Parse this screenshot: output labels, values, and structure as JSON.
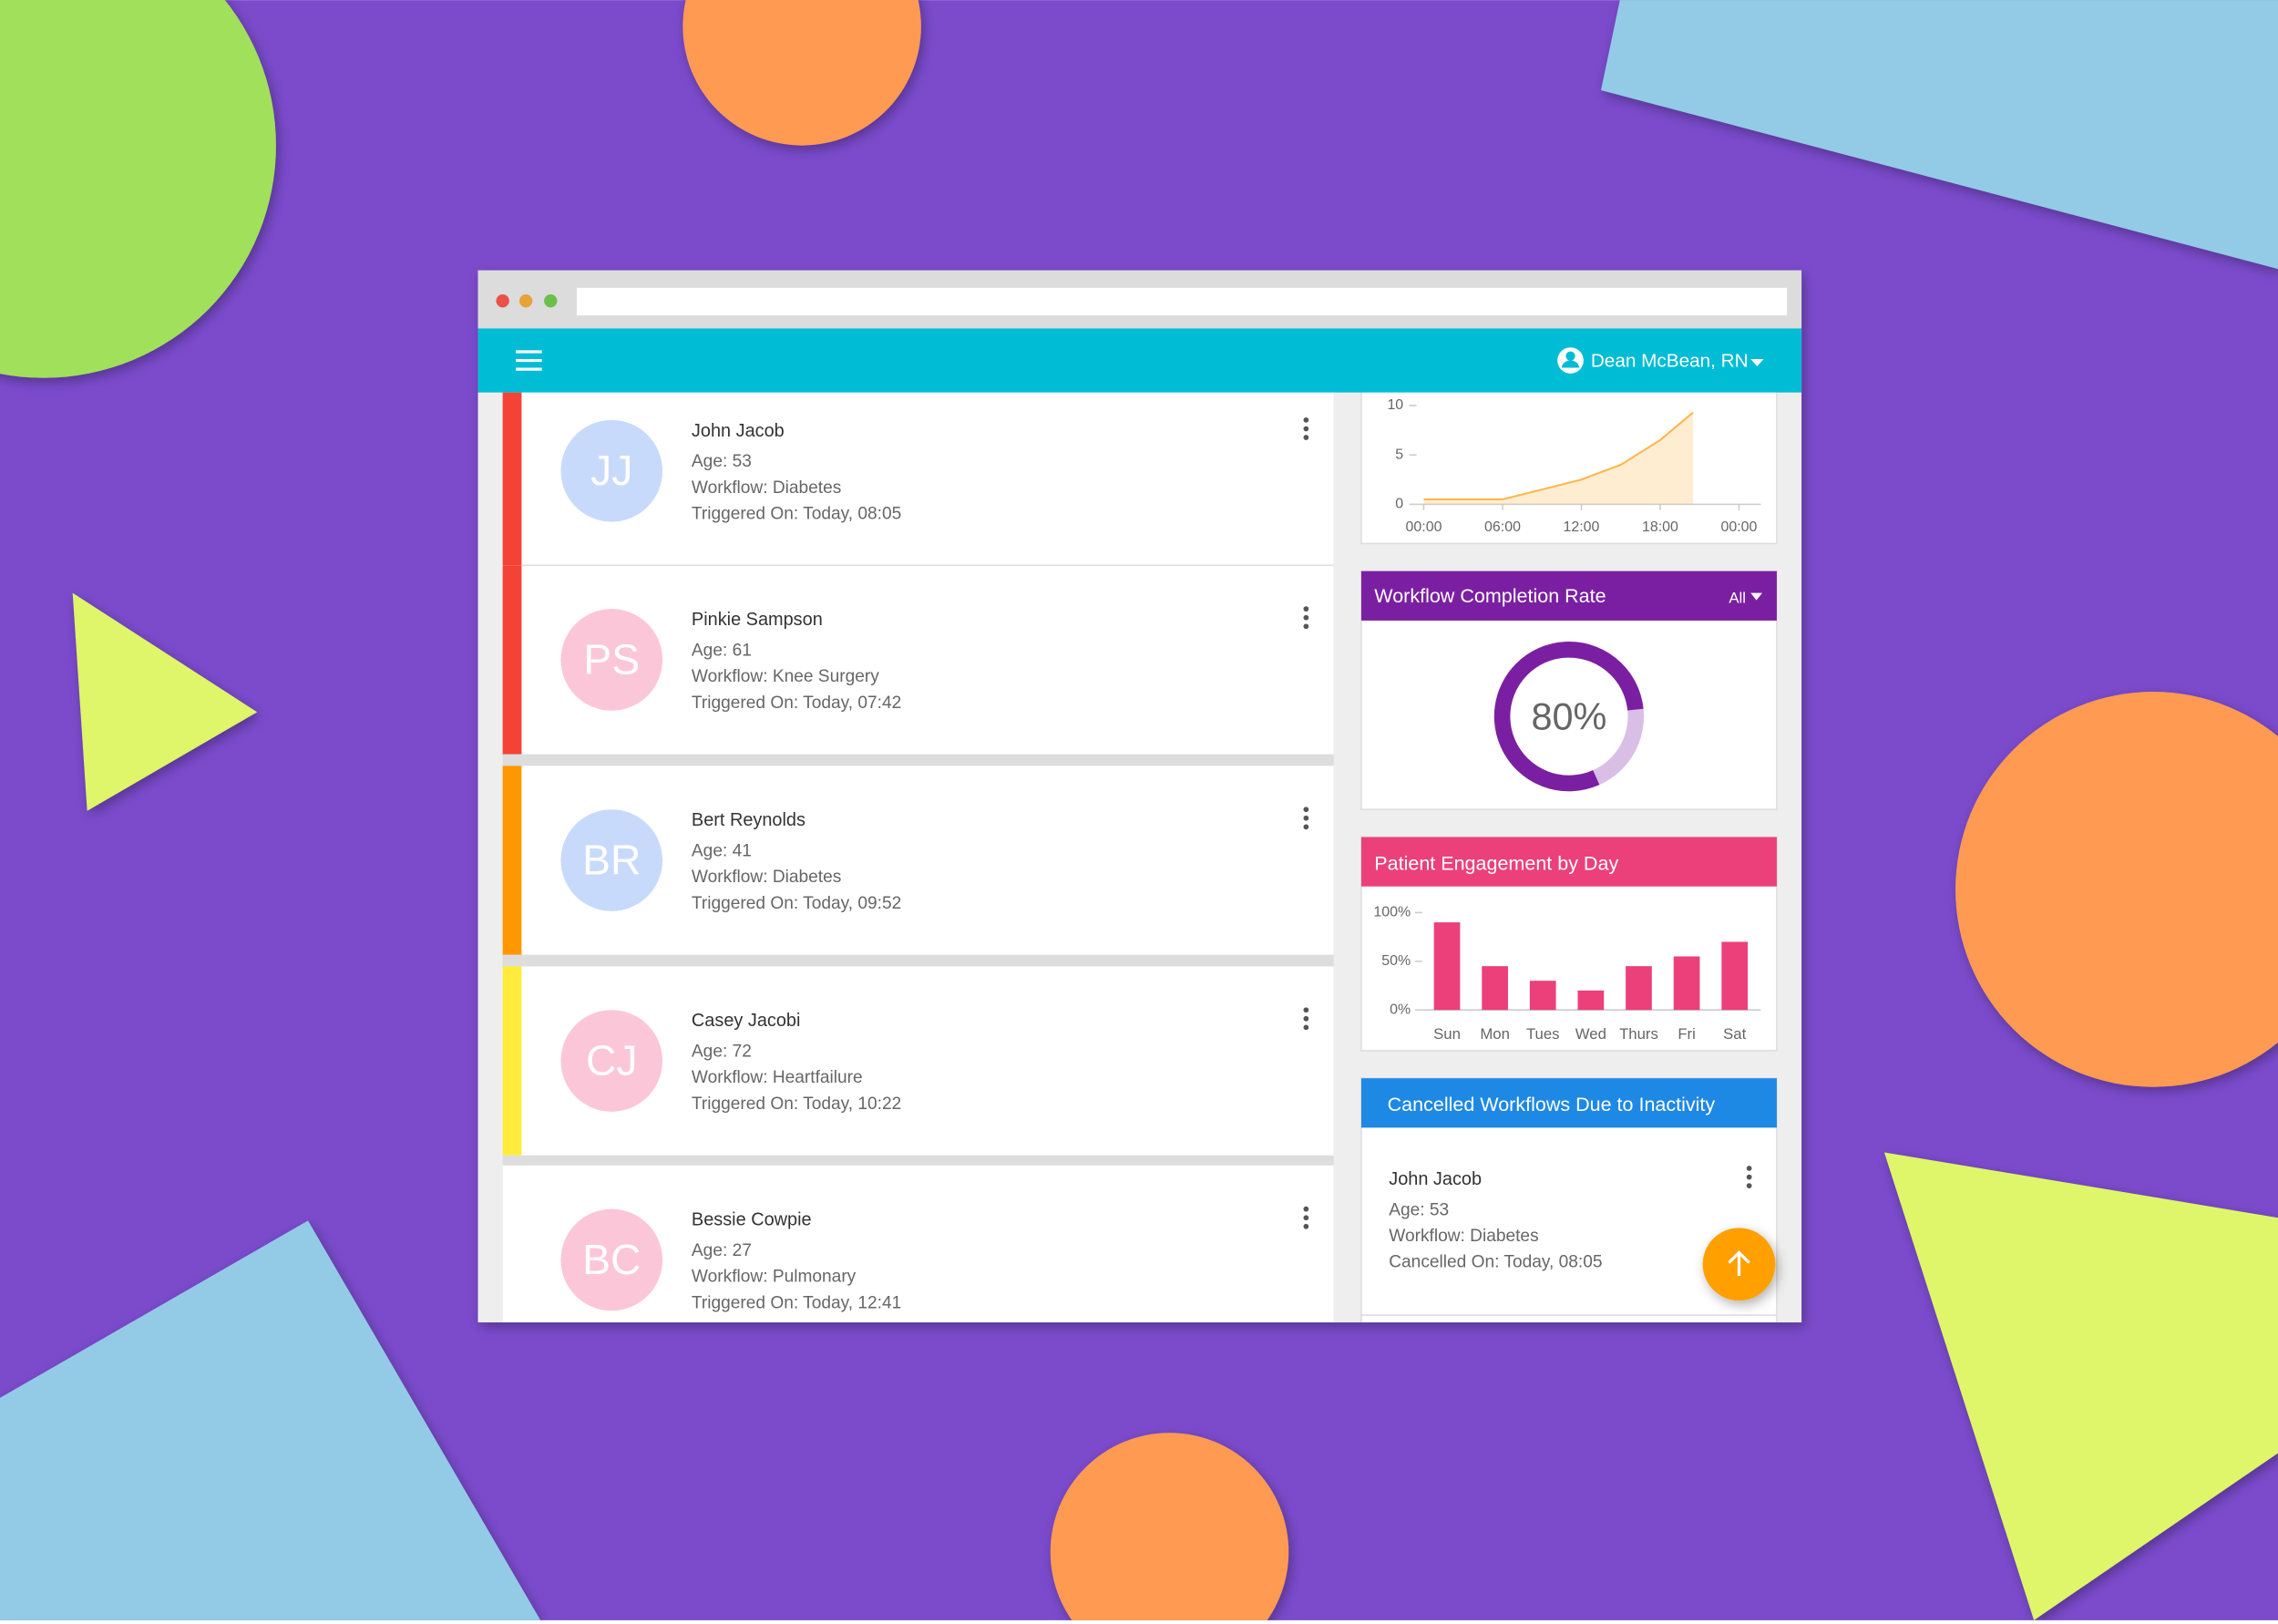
{
  "header": {
    "user": "Dean McBean, RN"
  },
  "patients": [
    {
      "initials": "JJ",
      "name": "John Jacob",
      "age": "Age: 53",
      "workflow": "Workflow: Diabetes",
      "triggered": "Triggered On: Today, 08:05",
      "accent": "#f44336",
      "avatar": "#c8dafc"
    },
    {
      "initials": "PS",
      "name": "Pinkie Sampson",
      "age": "Age: 61",
      "workflow": "Workflow: Knee Surgery",
      "triggered": "Triggered On: Today, 07:42",
      "accent": "#f44336",
      "avatar": "#fcc6d9"
    },
    {
      "initials": "BR",
      "name": "Bert Reynolds",
      "age": "Age: 41",
      "workflow": "Workflow: Diabetes",
      "triggered": "Triggered On: Today, 09:52",
      "accent": "#ff9800",
      "avatar": "#c8dafc"
    },
    {
      "initials": "CJ",
      "name": "Casey Jacobi",
      "age": "Age: 72",
      "workflow": "Workflow: Heartfailure",
      "triggered": "Triggered On: Today, 10:22",
      "accent": "#ffeb3b",
      "avatar": "#fcc6d9"
    },
    {
      "initials": "BC",
      "name": "Bessie Cowpie",
      "age": "Age: 27",
      "workflow": "Workflow: Pulmonary",
      "triggered": "Triggered On: Today, 12:41",
      "avatar": "#fcc6d9"
    }
  ],
  "trend_chart": {
    "type": "area",
    "x": [
      0,
      6,
      9,
      12,
      15,
      18,
      20.5
    ],
    "values": [
      0.5,
      0.5,
      1.5,
      2.5,
      4,
      6.5,
      9.3
    ],
    "xlim": [
      0,
      24
    ],
    "xticks": [
      {
        "value": 0,
        "label": "00:00"
      },
      {
        "value": 6,
        "label": "06:00"
      },
      {
        "value": 12,
        "label": "12:00"
      },
      {
        "value": 18,
        "label": "18:00"
      },
      {
        "value": 24,
        "label": "00:00"
      }
    ],
    "ylim": [
      0,
      10
    ],
    "yticks": [
      0,
      5,
      10
    ],
    "color": "#ffb74d"
  },
  "completion_chart": {
    "type": "donut",
    "title": "Workflow Completion Rate",
    "filter": "All",
    "values": [
      80
    ],
    "value_labels": [
      "80%"
    ],
    "color": "#7b1fa2"
  },
  "engagement_chart": {
    "type": "bar",
    "title": "Patient Engagement by Day",
    "categories": [
      "Sun",
      "Mon",
      "Tues",
      "Wed",
      "Thurs",
      "Fri",
      "Sat"
    ],
    "values": [
      90,
      45,
      30,
      20,
      45,
      55,
      70
    ],
    "ylim": [
      0,
      100
    ],
    "yticks": [
      {
        "value": 0,
        "label": "0%"
      },
      {
        "value": 50,
        "label": "50%"
      },
      {
        "value": 100,
        "label": "100%"
      }
    ],
    "color": "#ec407a"
  },
  "cancelled": {
    "title": "Cancelled Workflows Due to Inactivity",
    "items": [
      {
        "name": "John Jacob",
        "age": "Age: 53",
        "workflow": "Workflow: Diabetes",
        "cancelled": "Cancelled On: Today, 08:05"
      }
    ]
  }
}
